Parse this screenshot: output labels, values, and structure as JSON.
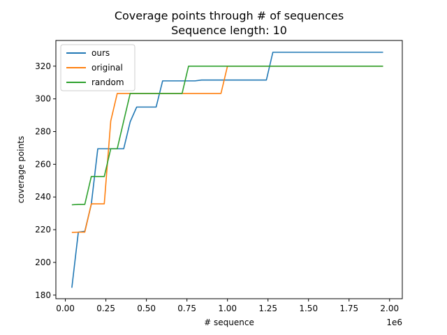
{
  "chart_data": {
    "type": "line",
    "title": "Coverage points through # of sequences",
    "subtitle": "Sequence length: 10",
    "xlabel": "# sequence",
    "ylabel": "coverage points",
    "x_offset_label": "1e6",
    "xlim": [
      -0.0585,
      2.0785
    ],
    "ylim": [
      177.8,
      335.7
    ],
    "x_ticks": [
      0.0,
      0.25,
      0.5,
      0.75,
      1.0,
      1.25,
      1.5,
      1.75,
      2.0
    ],
    "x_tick_labels": [
      "0.00",
      "0.25",
      "0.50",
      "0.75",
      "1.00",
      "1.25",
      "1.50",
      "1.75",
      "2.00"
    ],
    "y_ticks": [
      180,
      200,
      220,
      240,
      260,
      280,
      300,
      320
    ],
    "y_tick_labels": [
      "180",
      "200",
      "220",
      "240",
      "260",
      "280",
      "300",
      "320"
    ],
    "grid": false,
    "legend_position": "top-left",
    "series": [
      {
        "name": "ours",
        "color": "#1f77b4",
        "x": [
          0.04,
          0.08,
          0.12,
          0.16,
          0.2,
          0.24,
          0.28,
          0.32,
          0.36,
          0.4,
          0.44,
          0.48,
          0.52,
          0.56,
          0.6,
          0.64,
          0.68,
          0.72,
          0.76,
          0.8,
          0.84,
          0.88,
          0.92,
          0.96,
          1.0,
          1.04,
          1.08,
          1.12,
          1.16,
          1.2,
          1.24,
          1.28,
          1.32,
          1.36,
          1.4,
          1.44,
          1.48,
          1.52,
          1.56,
          1.6,
          1.64,
          1.68,
          1.72,
          1.76,
          1.8,
          1.84,
          1.88,
          1.92,
          1.96
        ],
        "y": [
          184.5,
          218.5,
          219,
          235.5,
          269.5,
          269.5,
          269.5,
          269.5,
          269.5,
          286,
          295,
          295,
          295,
          295,
          311,
          311,
          311,
          311,
          311,
          311,
          311.5,
          311.5,
          311.5,
          311.5,
          311.5,
          311.5,
          311.5,
          311.5,
          311.5,
          311.5,
          311.5,
          328.5,
          328.5,
          328.5,
          328.5,
          328.5,
          328.5,
          328.5,
          328.5,
          328.5,
          328.5,
          328.5,
          328.5,
          328.5,
          328.5,
          328.5,
          328.5,
          328.5,
          328.5
        ]
      },
      {
        "name": "original",
        "color": "#ff7f0e",
        "x": [
          0.04,
          0.08,
          0.12,
          0.16,
          0.2,
          0.24,
          0.28,
          0.32,
          0.36,
          0.4,
          0.44,
          0.48,
          0.52,
          0.56,
          0.6,
          0.64,
          0.68,
          0.72,
          0.76,
          0.8,
          0.84,
          0.88,
          0.92,
          0.96,
          1.0,
          1.04,
          1.08,
          1.12,
          1.16,
          1.2,
          1.24,
          1.28,
          1.32,
          1.36,
          1.4,
          1.44,
          1.48,
          1.52,
          1.56,
          1.6,
          1.64,
          1.68,
          1.72,
          1.76,
          1.8,
          1.84,
          1.88,
          1.92,
          1.96
        ],
        "y": [
          218.3,
          218.5,
          218.5,
          235.8,
          235.8,
          235.8,
          286.5,
          303.3,
          303.3,
          303.3,
          303.3,
          303.3,
          303.3,
          303.3,
          303.3,
          303.3,
          303.3,
          303.3,
          303.3,
          303.3,
          303.3,
          303.3,
          303.3,
          303.3,
          320,
          320,
          320,
          320,
          320,
          320,
          320,
          320,
          320,
          320,
          320,
          320,
          320,
          320,
          320,
          320,
          320,
          320,
          320,
          320,
          320,
          320,
          320,
          320,
          320
        ]
      },
      {
        "name": "random",
        "color": "#2ca02c",
        "x": [
          0.04,
          0.08,
          0.12,
          0.16,
          0.2,
          0.24,
          0.28,
          0.32,
          0.36,
          0.4,
          0.44,
          0.48,
          0.52,
          0.56,
          0.6,
          0.64,
          0.68,
          0.72,
          0.76,
          0.8,
          0.84,
          0.88,
          0.92,
          0.96,
          1.0,
          1.04,
          1.08,
          1.12,
          1.16,
          1.2,
          1.24,
          1.28,
          1.32,
          1.36,
          1.4,
          1.44,
          1.48,
          1.52,
          1.56,
          1.6,
          1.64,
          1.68,
          1.72,
          1.76,
          1.8,
          1.84,
          1.88,
          1.92,
          1.96
        ],
        "y": [
          235.2,
          235.5,
          235.5,
          252.5,
          252.5,
          252.5,
          269.5,
          269.5,
          286.5,
          303.3,
          303.3,
          303.3,
          303.3,
          303.3,
          303.3,
          303.3,
          303.3,
          303.3,
          320,
          320,
          320,
          320,
          320,
          320,
          320,
          320,
          320,
          320,
          320,
          320,
          320,
          320,
          320,
          320,
          320,
          320,
          320,
          320,
          320,
          320,
          320,
          320,
          320,
          320,
          320,
          320,
          320,
          320,
          320
        ]
      }
    ]
  }
}
